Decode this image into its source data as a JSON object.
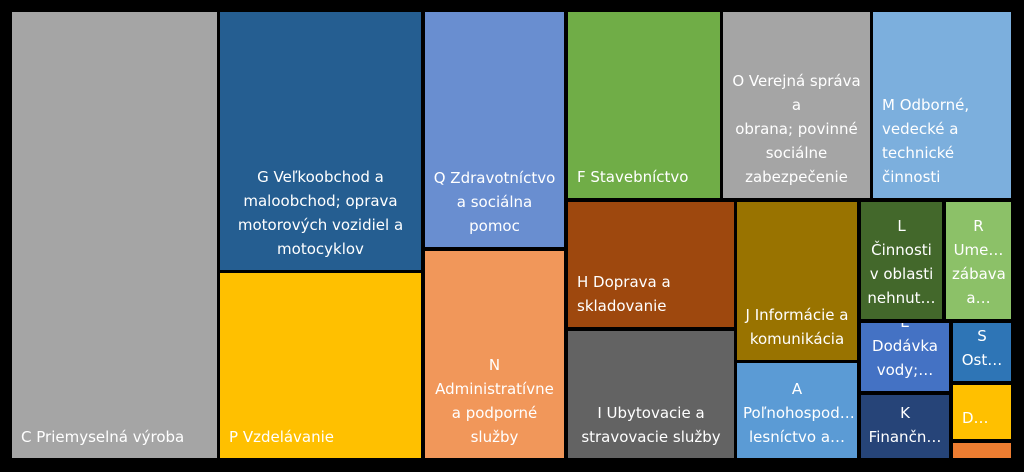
{
  "chart_data": {
    "type": "treemap",
    "colors": {
      "C": "#a5a5a5",
      "G": "#255e91",
      "P": "#ffc000",
      "Q": "#698ed0",
      "N": "#f1975a",
      "F": "#70ad47",
      "H": "#9e480e",
      "I": "#636363",
      "O": "#a5a5a5",
      "M": "#7cafdd",
      "J": "#997300",
      "A": "#5b9bd5",
      "L": "#43682b",
      "R": "#8cc168",
      "E": "#4472c4",
      "S": "#2e75b6",
      "K": "#264478",
      "D": "#ffc000",
      "X": "#ed7d31"
    },
    "tiles": [
      {
        "key": "C",
        "label": "C Priemyselná výroba"
      },
      {
        "key": "G",
        "label": "G Veľkoobchod a\nmaloobchod; oprava\nmotorových vozidiel a\nmotocyklov"
      },
      {
        "key": "P",
        "label": "P Vzdelávanie"
      },
      {
        "key": "Q",
        "label": "Q Zdravotníctvo\na sociálna pomoc"
      },
      {
        "key": "N",
        "label": "N\nAdministratívne\na podporné\nslužby"
      },
      {
        "key": "F",
        "label": "F Stavebníctvo"
      },
      {
        "key": "H",
        "label": "H Doprava a\nskladovanie"
      },
      {
        "key": "I",
        "label": "I Ubytovacie a\nstravovacie služby"
      },
      {
        "key": "O",
        "label": "O Verejná správa a\nobrana; povinné\nsociálne\nzabezpečenie"
      },
      {
        "key": "M",
        "label": "M Odborné,\nvedecké a\ntechnické\nčinnosti"
      },
      {
        "key": "J",
        "label": "J Informácie a\nkomunikácia"
      },
      {
        "key": "A",
        "label": "A\nPoľnohospod…\nlesníctvo a…"
      },
      {
        "key": "L",
        "label": "L\nČinnosti\nv oblasti\nnehnut…"
      },
      {
        "key": "R",
        "label": "R\nUme…\nzábava\na…"
      },
      {
        "key": "E",
        "label": "E Dodávka\nvody;…"
      },
      {
        "key": "S",
        "label": "S\nOst…"
      },
      {
        "key": "K",
        "label": "K\nFinančn…"
      },
      {
        "key": "D",
        "label": "D…"
      },
      {
        "key": "X",
        "label": ""
      }
    ]
  }
}
